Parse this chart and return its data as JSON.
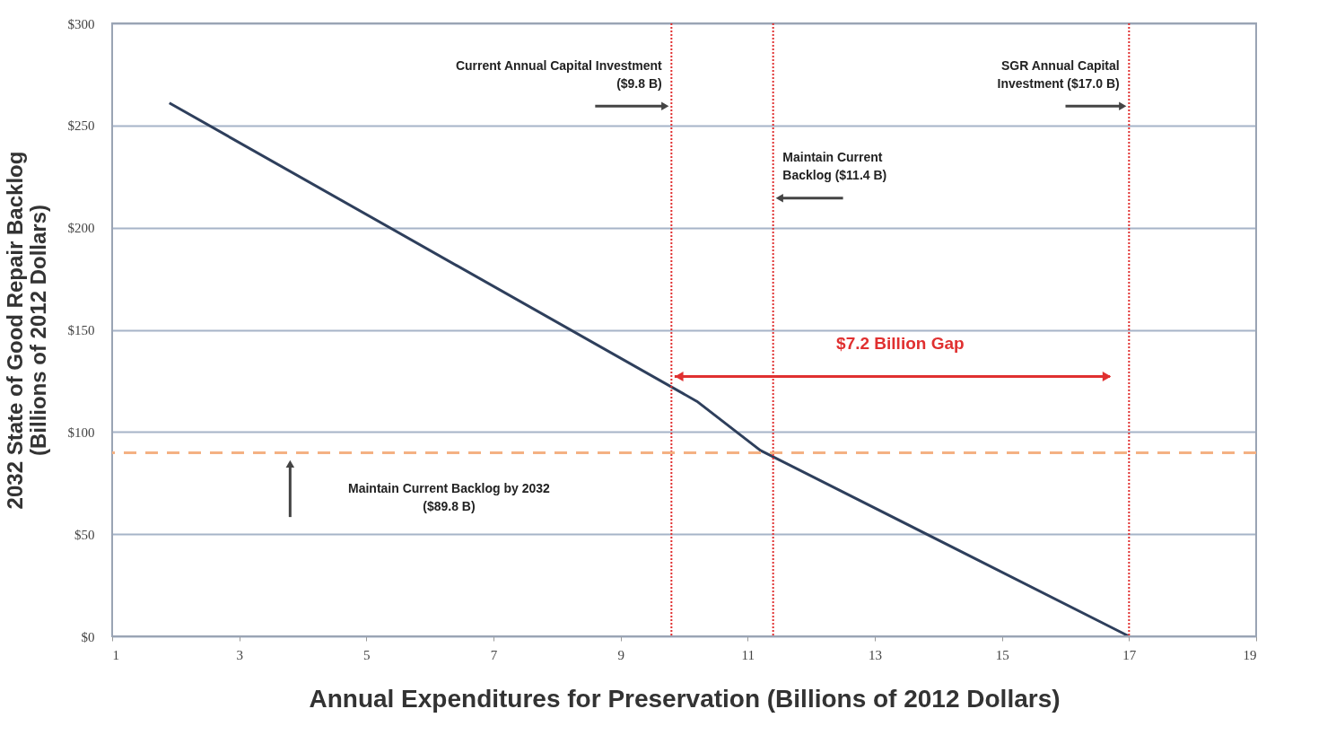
{
  "chart_data": {
    "type": "line",
    "xlabel": "Annual Expenditures for Preservation (Billions of 2012 Dollars)",
    "ylabel": "2032 State of Good Repair Backlog\n(Billions  of 2012 Dollars)",
    "x": [
      1.9,
      10.2,
      11.2,
      17.0
    ],
    "series": [
      {
        "color": "#2e3f5c",
        "values": [
          261,
          115,
          91,
          0
        ]
      }
    ],
    "xlim": [
      1,
      19
    ],
    "xticks": [
      1,
      3,
      5,
      7,
      9,
      11,
      13,
      15,
      17,
      19
    ],
    "ylim": [
      0,
      300
    ],
    "yticks": [
      {
        "value": 0,
        "label": "$0"
      },
      {
        "value": 50,
        "label": "$50"
      },
      {
        "value": 100,
        "label": "$100"
      },
      {
        "value": 150,
        "label": "$150"
      },
      {
        "value": 200,
        "label": "$200"
      },
      {
        "value": 250,
        "label": "$250"
      },
      {
        "value": 300,
        "label": "$300"
      }
    ],
    "grid": "y",
    "marker": "none",
    "line_style": "solid",
    "ref_lines": [
      {
        "axis": "x",
        "value": 9.8,
        "label": "Current Annual Capital Investment\n($9.8 B)",
        "color": "#e03030",
        "line_style": "dotted"
      },
      {
        "axis": "x",
        "value": 11.4,
        "label": "Maintain Current\nBacklog  ($11.4 B)",
        "color": "#e03030",
        "line_style": "dotted"
      },
      {
        "axis": "x",
        "value": 17.0,
        "label": "SGR Annual Capital\nInvestment ($17.0 B)",
        "color": "#e03030",
        "line_style": "dotted"
      },
      {
        "axis": "y",
        "value": 89.8,
        "label": "Maintain Current Backlog  by 2032\n($89.8 B)",
        "color": "#f4b183",
        "line_style": "dashed"
      }
    ],
    "annotations": [
      "$7.2 Billion Gap"
    ]
  }
}
